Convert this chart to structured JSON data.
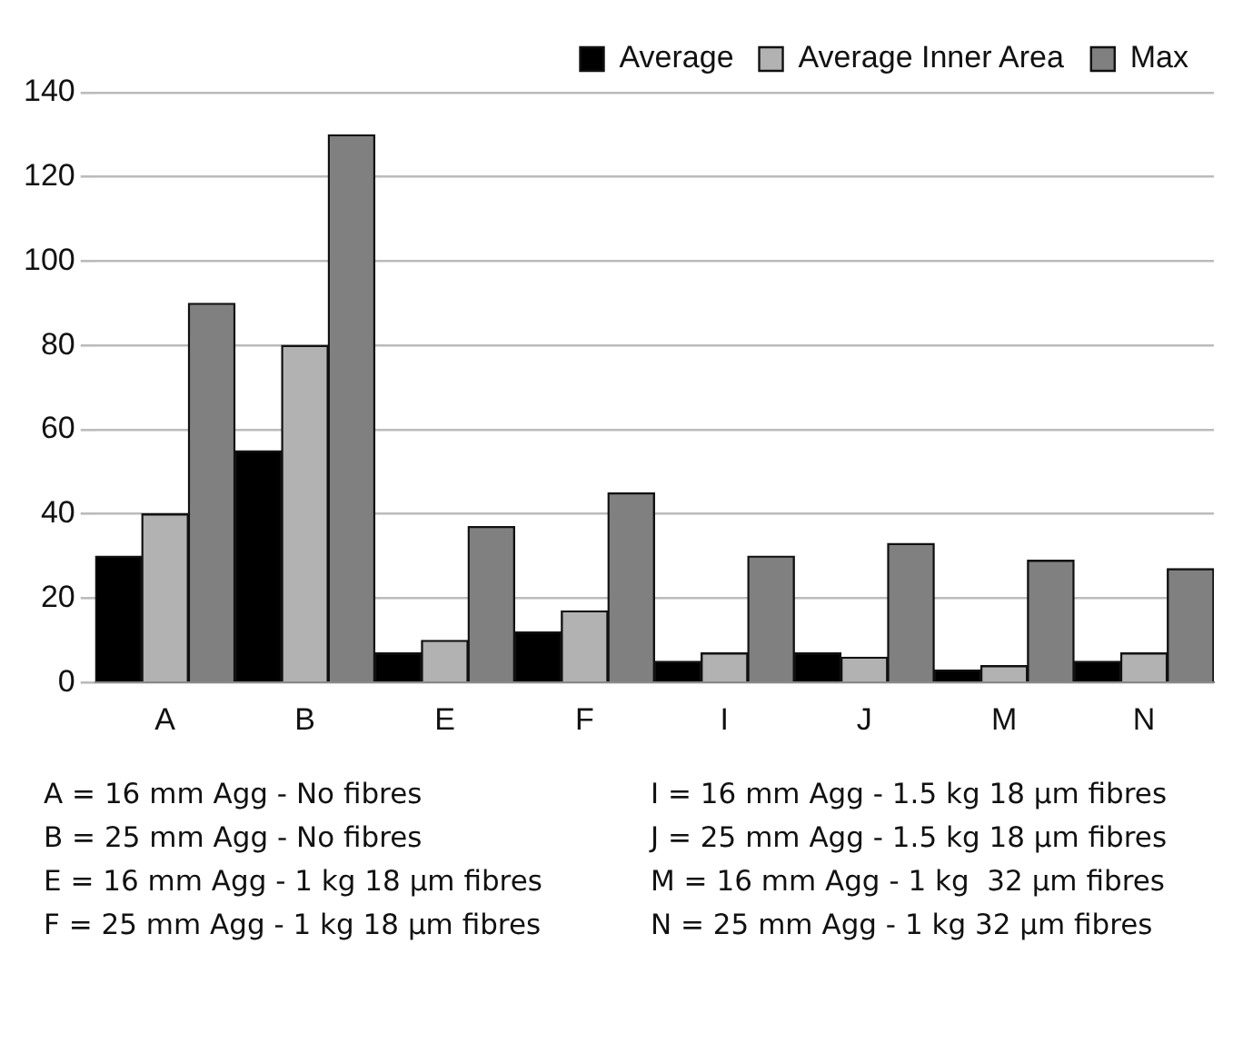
{
  "chart_data": {
    "type": "bar",
    "categories": [
      "A",
      "B",
      "E",
      "F",
      "I",
      "J",
      "M",
      "N"
    ],
    "series": [
      {
        "name": "Average",
        "color": "#000000",
        "values": [
          30,
          55,
          7,
          12,
          5,
          7,
          3,
          5
        ]
      },
      {
        "name": "Average Inner Area",
        "color": "#b2b2b2",
        "values": [
          40,
          80,
          10,
          17,
          7,
          6,
          4,
          7
        ]
      },
      {
        "name": "Max",
        "color": "#808080",
        "values": [
          90,
          130,
          37,
          45,
          30,
          33,
          29,
          27
        ]
      }
    ],
    "ylim": [
      0,
      140
    ],
    "yticks": [
      0,
      20,
      40,
      60,
      80,
      100,
      120,
      140
    ],
    "grid": "y",
    "legend": "top right",
    "annotations": [
      "A = 16 mm Agg - No fibres",
      "I = 16 mm Agg - 1.5 kg 18 µm fibres",
      "B = 25 mm Agg - No fibres",
      "J = 25 mm Agg - 1.5 kg 18 µm fibres",
      "E = 16 mm Agg - 1 kg 18 µm fibres",
      "M = 16 mm Agg - 1 kg  32 µm fibres",
      "F = 25 mm Agg - 1 kg 18 µm fibres",
      "N = 25 mm Agg - 1 kg 32 µm fibres"
    ]
  }
}
